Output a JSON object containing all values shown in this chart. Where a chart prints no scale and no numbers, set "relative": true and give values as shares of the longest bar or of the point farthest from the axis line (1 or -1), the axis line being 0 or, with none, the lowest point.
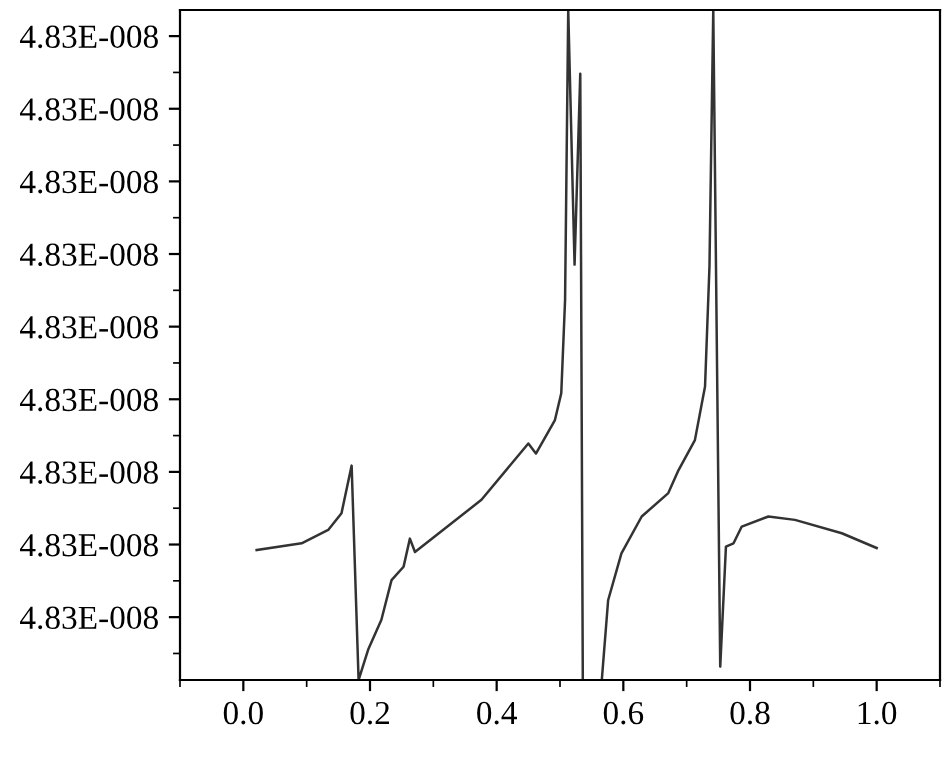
{
  "chart_data": {
    "type": "line",
    "relative": true,
    "x": [
      0.021,
      0.092,
      0.134,
      0.155,
      0.171,
      0.182,
      0.197,
      0.218,
      0.234,
      0.253,
      0.263,
      0.271,
      0.376,
      0.45,
      0.462,
      0.492,
      0.502,
      0.508,
      0.513,
      0.523,
      0.532,
      0.536,
      0.55,
      0.566,
      0.576,
      0.597,
      0.629,
      0.671,
      0.687,
      0.713,
      0.729,
      0.736,
      0.742,
      0.753,
      0.762,
      0.774,
      0.787,
      0.829,
      0.871,
      0.945,
      1.0
    ],
    "series": [
      {
        "color": "#333333",
        "values": [
          0.194,
          0.204,
          0.224,
          0.249,
          0.32,
          0.0,
          0.045,
          0.09,
          0.149,
          0.169,
          0.211,
          0.191,
          0.269,
          0.353,
          0.338,
          0.388,
          0.428,
          0.567,
          1.0,
          0.62,
          0.905,
          0.0,
          null,
          0.0,
          0.119,
          0.189,
          0.244,
          0.279,
          0.313,
          0.358,
          0.438,
          0.617,
          1.0,
          0.02,
          0.199,
          0.204,
          0.229,
          0.244,
          0.239,
          0.219,
          0.197
        ]
      }
    ],
    "xlim": [
      -0.1,
      1.1
    ],
    "xticks": [
      {
        "value": 0.0,
        "label": "0.0"
      },
      {
        "value": 0.2,
        "label": "0.2"
      },
      {
        "value": 0.4,
        "label": "0.4"
      },
      {
        "value": 0.6,
        "label": "0.6"
      },
      {
        "value": 0.8,
        "label": "0.8"
      },
      {
        "value": 1.0,
        "label": "1.0"
      }
    ],
    "annotations": [
      "4.83E-008",
      "4.83E-008",
      "4.83E-008",
      "4.83E-008",
      "4.83E-008",
      "4.83E-008",
      "4.83E-008",
      "4.83E-008",
      "4.83E-008"
    ],
    "grid": false,
    "marker": "none",
    "line_style": "solid"
  }
}
